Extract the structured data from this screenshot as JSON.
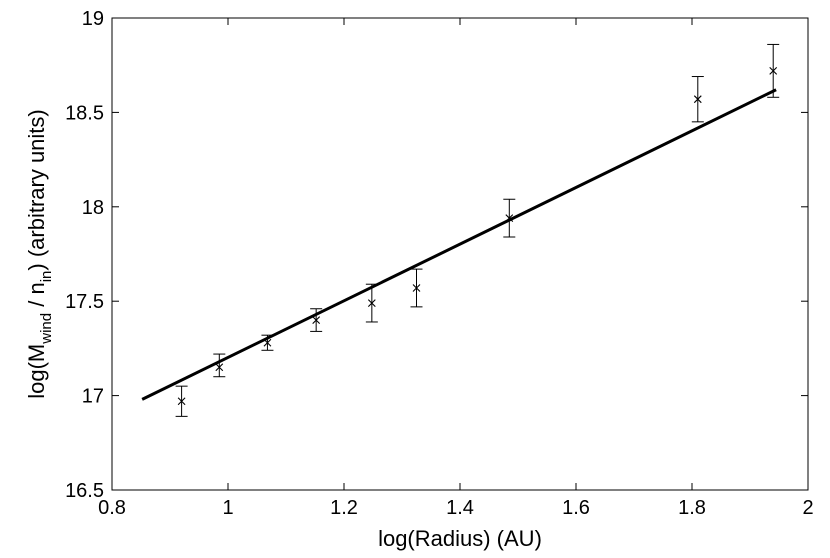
{
  "chart_data": {
    "type": "scatter",
    "xlabel": "log(Radius) (AU)",
    "ylabel": {
      "prefix": "log(M",
      "sub1": "wind",
      "middle": " / n",
      "sub2": "in",
      "suffix": ") (arbitrary units)"
    },
    "xlim": [
      0.8,
      2.0
    ],
    "ylim": [
      16.5,
      19.0
    ],
    "xticks": [
      "0.8",
      "1",
      "1.2",
      "1.4",
      "1.6",
      "1.8",
      "2"
    ],
    "yticks": [
      "16.5",
      "17",
      "17.5",
      "18",
      "18.5",
      "19"
    ],
    "grid": false,
    "legend": "none",
    "series": [
      {
        "kind": "points_with_errorbars",
        "marker": "x",
        "points": [
          {
            "x": 0.92,
            "y": 16.97,
            "lo": 16.89,
            "hi": 17.05
          },
          {
            "x": 0.985,
            "y": 17.15,
            "lo": 17.1,
            "hi": 17.22
          },
          {
            "x": 1.068,
            "y": 17.28,
            "lo": 17.24,
            "hi": 17.32
          },
          {
            "x": 1.152,
            "y": 17.4,
            "lo": 17.34,
            "hi": 17.46
          },
          {
            "x": 1.248,
            "y": 17.49,
            "lo": 17.39,
            "hi": 17.59
          },
          {
            "x": 1.325,
            "y": 17.57,
            "lo": 17.47,
            "hi": 17.67
          },
          {
            "x": 1.485,
            "y": 17.94,
            "lo": 17.84,
            "hi": 18.04
          },
          {
            "x": 1.81,
            "y": 18.57,
            "lo": 18.45,
            "hi": 18.69
          },
          {
            "x": 1.94,
            "y": 18.72,
            "lo": 18.58,
            "hi": 18.86
          }
        ]
      },
      {
        "kind": "fit_line",
        "x": [
          0.852,
          1.945
        ],
        "y": [
          16.98,
          18.62
        ]
      }
    ]
  }
}
